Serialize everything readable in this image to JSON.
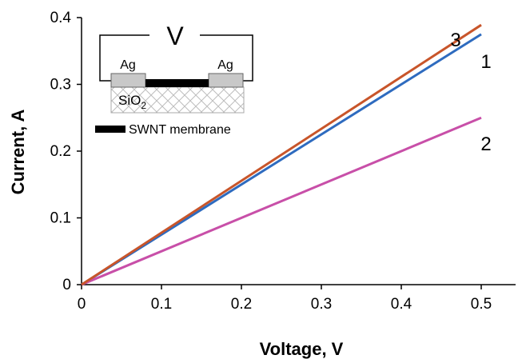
{
  "chart_data": {
    "type": "line",
    "xlabel": "Voltage, V",
    "ylabel": "Current, A",
    "xlim": [
      0,
      0.55
    ],
    "ylim": [
      0,
      0.4
    ],
    "x_ticks": [
      "0",
      "0.1",
      "0.2",
      "0.3",
      "0.4",
      "0.5"
    ],
    "y_ticks": [
      "0",
      "0.1",
      "0.2",
      "0.3",
      "0.4"
    ],
    "grid": false,
    "series": [
      {
        "name": "1",
        "color": "#2e6bbf",
        "x": [
          0,
          0.5
        ],
        "y": [
          0,
          0.375
        ]
      },
      {
        "name": "2",
        "color": "#c84fa8",
        "x": [
          0,
          0.5
        ],
        "y": [
          0,
          0.25
        ]
      },
      {
        "name": "3",
        "color": "#c8552a",
        "x": [
          0,
          0.5
        ],
        "y": [
          0,
          0.389
        ]
      }
    ],
    "inset": {
      "voltage_symbol": "V",
      "electrode_left": "Ag",
      "electrode_right": "Ag",
      "substrate": "SiO",
      "substrate_subscript": "2",
      "legend_label": "SWNT membrane"
    }
  }
}
